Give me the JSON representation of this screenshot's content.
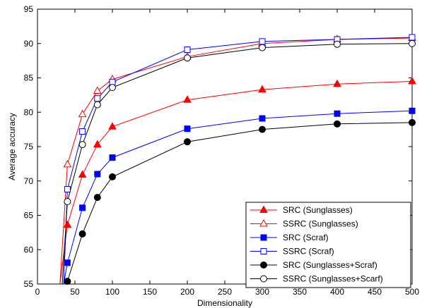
{
  "chart_data": {
    "type": "line",
    "xlabel": "Dimensionality",
    "ylabel": "Average accuracy",
    "xlim": [
      0,
      500
    ],
    "ylim": [
      55,
      95
    ],
    "xticks": [
      0,
      50,
      100,
      150,
      200,
      250,
      300,
      350,
      400,
      450,
      500
    ],
    "yticks": [
      55,
      60,
      65,
      70,
      75,
      80,
      85,
      90,
      95
    ],
    "grid": false,
    "legend_position": "bottom-right",
    "series": [
      {
        "name": "SRC (Sunglasses)",
        "color": "#ff0000",
        "marker": "triangle",
        "fill": "filled",
        "x": [
          30,
          40,
          60,
          80,
          100,
          200,
          300,
          400,
          500
        ],
        "y": [
          55,
          63.6,
          70.9,
          75.3,
          77.9,
          81.8,
          83.3,
          84.1,
          84.5
        ]
      },
      {
        "name": "SSRC (Sunglasses)",
        "color": "#ff0000",
        "marker": "triangle",
        "fill": "open",
        "x": [
          30,
          40,
          60,
          80,
          100,
          200,
          300,
          400,
          500
        ],
        "y": [
          55,
          72.4,
          79.7,
          83.1,
          84.8,
          88.1,
          90.0,
          90.6,
          90.8
        ]
      },
      {
        "name": "SRC (Scraf)",
        "color": "#0000ff",
        "marker": "square",
        "fill": "filled",
        "x": [
          35,
          40,
          60,
          80,
          100,
          200,
          300,
          400,
          500
        ],
        "y": [
          55,
          58.1,
          66.1,
          71.0,
          73.4,
          77.6,
          79.1,
          79.8,
          80.2
        ]
      },
      {
        "name": "SSRC (Scraf)",
        "color": "#0000ff",
        "marker": "square",
        "fill": "open",
        "x": [
          35,
          40,
          60,
          80,
          100,
          200,
          300,
          400,
          500
        ],
        "y": [
          55,
          68.8,
          77.2,
          82.0,
          84.4,
          89.1,
          90.3,
          90.6,
          90.9
        ]
      },
      {
        "name": "SRC (Sunglasses+Scraf)",
        "color": "#000000",
        "marker": "circle",
        "fill": "filled",
        "x": [
          40,
          60,
          80,
          100,
          200,
          300,
          400,
          500
        ],
        "y": [
          55.4,
          62.3,
          67.6,
          70.6,
          75.7,
          77.5,
          78.3,
          78.5
        ]
      },
      {
        "name": "SSRC (Sunglasses+Scarf)",
        "color": "#000000",
        "marker": "circle",
        "fill": "open",
        "x": [
          33,
          40,
          60,
          80,
          100,
          200,
          300,
          400,
          500
        ],
        "y": [
          55,
          67.0,
          75.3,
          81.1,
          83.6,
          87.9,
          89.4,
          89.9,
          90.0
        ]
      }
    ]
  }
}
